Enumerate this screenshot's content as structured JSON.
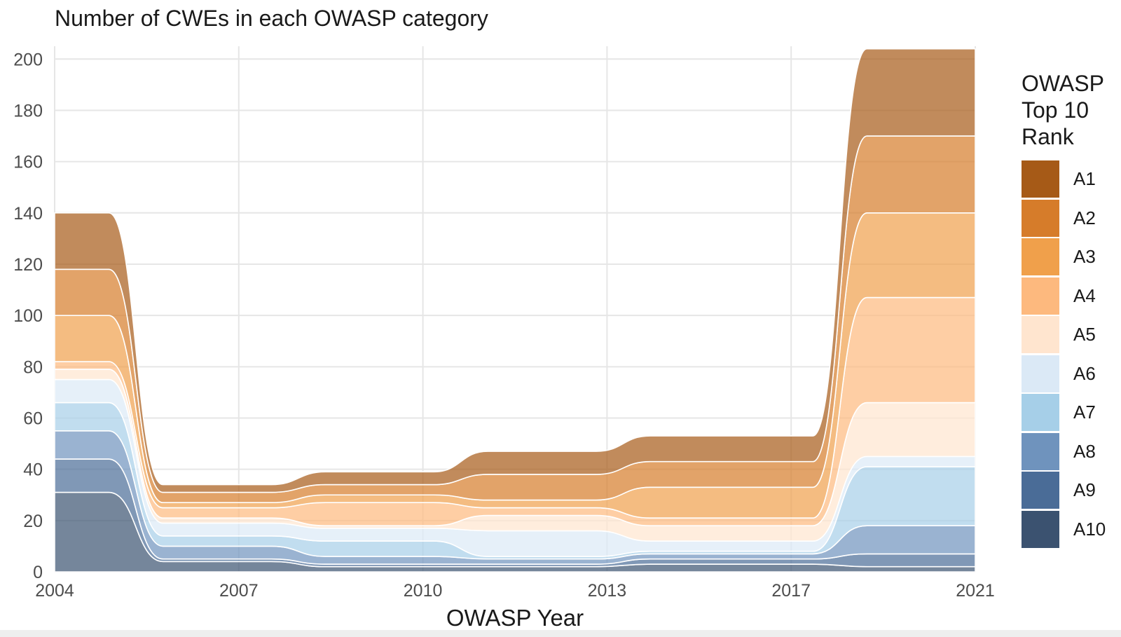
{
  "chart_data": {
    "type": "area",
    "stacked": true,
    "smooth": true,
    "title": "Number of CWEs in each OWASP category",
    "xlabel": "OWASP Year",
    "ylabel": "",
    "x_ticks": [
      "2004",
      "2007",
      "2010",
      "2013",
      "2017",
      "2021"
    ],
    "y_ticks": [
      0,
      20,
      40,
      60,
      80,
      100,
      120,
      140,
      160,
      180,
      200
    ],
    "ylim": [
      0,
      205
    ],
    "grid": true,
    "legend_title": "OWASP Top 10 Rank",
    "legend_position": "right",
    "x": [
      2004,
      2005,
      2006,
      2007,
      2008,
      2009,
      2010,
      2011,
      2012,
      2013,
      2014,
      2015,
      2016,
      2017,
      2018,
      2019,
      2020,
      2021
    ],
    "series": [
      {
        "name": "A1",
        "color": "#a65a17",
        "values": [
          22,
          22,
          3,
          3,
          3,
          5,
          5,
          5,
          9,
          9,
          9,
          10,
          10,
          10,
          10,
          34,
          34,
          34
        ]
      },
      {
        "name": "A2",
        "color": "#d67c2a",
        "values": [
          18,
          18,
          4,
          4,
          4,
          4,
          4,
          4,
          10,
          10,
          10,
          10,
          10,
          10,
          10,
          30,
          30,
          30
        ]
      },
      {
        "name": "A3",
        "color": "#f0a04b",
        "values": [
          18,
          18,
          2,
          2,
          2,
          3,
          3,
          3,
          3,
          3,
          3,
          12,
          12,
          12,
          12,
          33,
          33,
          33
        ]
      },
      {
        "name": "A4",
        "color": "#fdb97e",
        "values": [
          3,
          3,
          4,
          4,
          4,
          9,
          9,
          9,
          3,
          3,
          3,
          3,
          3,
          3,
          3,
          41,
          41,
          41
        ]
      },
      {
        "name": "A5",
        "color": "#ffe5cf",
        "values": [
          4,
          4,
          2,
          2,
          2,
          1,
          1,
          1,
          6,
          6,
          6,
          6,
          6,
          6,
          6,
          21,
          21,
          21
        ]
      },
      {
        "name": "A6",
        "color": "#dbe9f6",
        "values": [
          9,
          9,
          5,
          5,
          5,
          5,
          5,
          5,
          10,
          10,
          10,
          4,
          4,
          4,
          4,
          4,
          4,
          4
        ]
      },
      {
        "name": "A7",
        "color": "#a6cfe8",
        "values": [
          11,
          11,
          4,
          4,
          4,
          6,
          6,
          6,
          1,
          1,
          1,
          1,
          1,
          1,
          1,
          23,
          23,
          23
        ]
      },
      {
        "name": "A8",
        "color": "#6f93bd",
        "values": [
          11,
          11,
          5,
          5,
          5,
          3,
          3,
          3,
          2,
          2,
          2,
          2,
          2,
          2,
          2,
          11,
          11,
          11
        ]
      },
      {
        "name": "A9",
        "color": "#4a6c97",
        "values": [
          13,
          13,
          1,
          1,
          1,
          1,
          1,
          1,
          1,
          1,
          1,
          2,
          2,
          2,
          2,
          5,
          5,
          5
        ]
      },
      {
        "name": "A10",
        "color": "#3b5270",
        "values": [
          31,
          31,
          4,
          4,
          4,
          2,
          2,
          2,
          2,
          2,
          2,
          3,
          3,
          3,
          3,
          2,
          2,
          2
        ]
      }
    ]
  }
}
